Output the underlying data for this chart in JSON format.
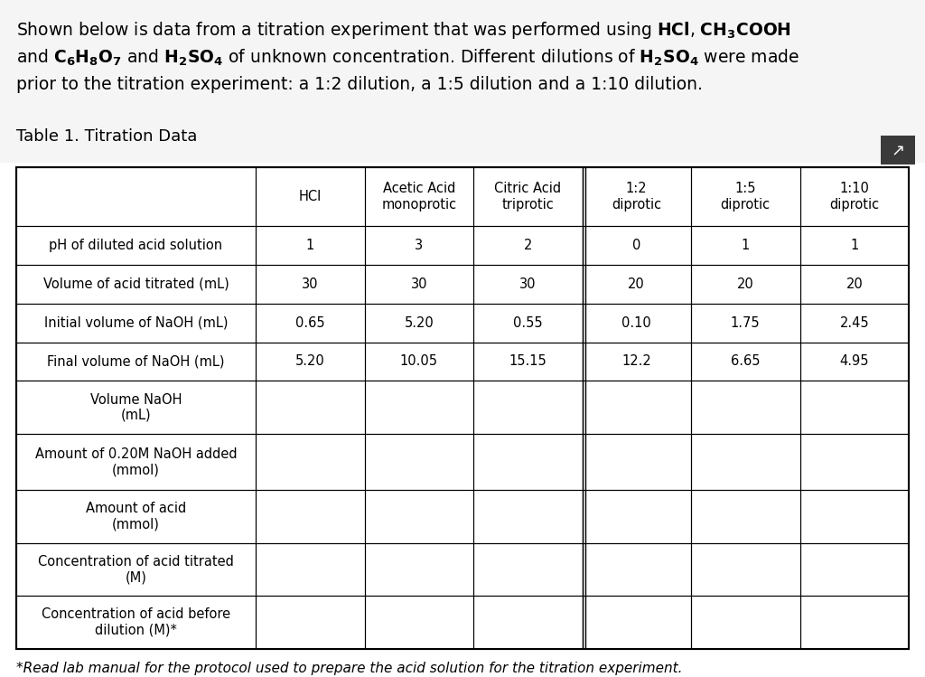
{
  "title_lines": [
    "Shown below is data from a titration experiment that was performed using $\\mathbf{HCl}$, $\\mathbf{CH_3COOH}$",
    "and $\\mathbf{C_6H_8O_7}$ and $\\mathbf{H_2SO_4}$ of unknown concentration. Different dilutions of $\\mathbf{H_2SO_4}$ were made",
    "prior to the titration experiment: a 1:2 dilution, a 1:5 dilution and a 1:10 dilution."
  ],
  "table_title": "Table 1. Titration Data",
  "col_headers": [
    "HCl",
    "Acetic Acid\nmonoprotic",
    "Citric Acid\ntriprotic",
    "1:2\ndiprotic",
    "1:5\ndiprotic",
    "1:10\ndiprotic"
  ],
  "row_labels": [
    "pH of diluted acid solution",
    "Volume of acid titrated (mL)",
    "Initial volume of NaOH (mL)",
    "Final volume of NaOH (mL)",
    "Volume NaOH\n(mL)",
    "Amount of 0.20M NaOH added\n(mmol)",
    "Amount of acid\n(mmol)",
    "Concentration of acid titrated\n(M)",
    "Concentration of acid before\ndilution (M)*"
  ],
  "data_rows": [
    [
      "1",
      "3",
      "2",
      "0",
      "1",
      "1"
    ],
    [
      "30",
      "30",
      "30",
      "20",
      "20",
      "20"
    ],
    [
      "0.65",
      "5.20",
      "0.55",
      "0.10",
      "1.75",
      "2.45"
    ],
    [
      "5.20",
      "10.05",
      "15.15",
      "12.2",
      "6.65",
      "4.95"
    ],
    [
      "",
      "",
      "",
      "",
      "",
      ""
    ],
    [
      "",
      "",
      "",
      "",
      "",
      ""
    ],
    [
      "",
      "",
      "",
      "",
      "",
      ""
    ],
    [
      "",
      "",
      "",
      "",
      "",
      ""
    ],
    [
      "",
      "",
      "",
      "",
      "",
      ""
    ]
  ],
  "footer_text": "*Read lab manual for the protocol used to prepare the acid solution for the titration experiment.",
  "bg_color": "#ffffff",
  "light_bg": "#f0f0f0",
  "text_color": "#000000",
  "title_fontsize": 13.5,
  "table_title_fontsize": 13,
  "header_fontsize": 10.5,
  "cell_fontsize": 10.5,
  "footer_fontsize": 11,
  "btn_color": "#3a3a3a"
}
